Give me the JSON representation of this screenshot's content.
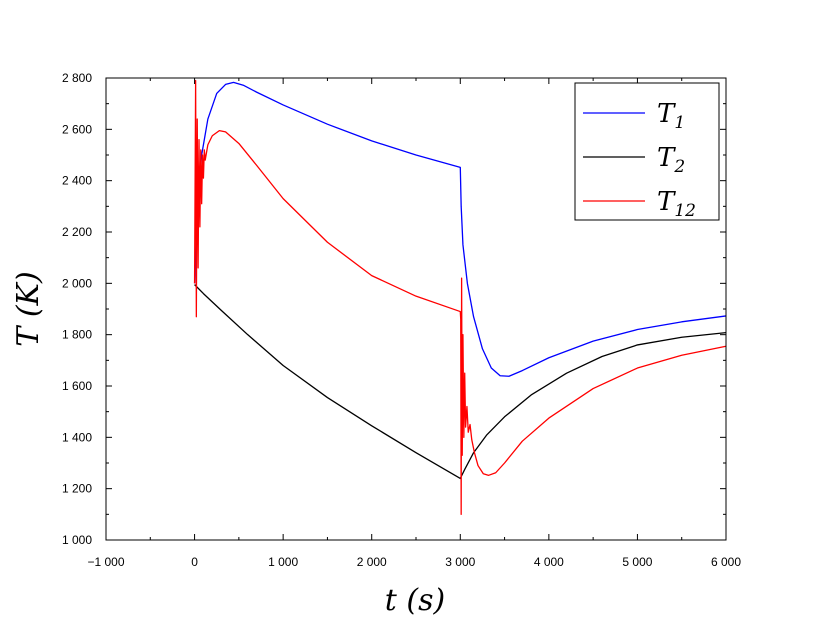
{
  "chart_data": {
    "type": "line",
    "title": "",
    "xlabel": {
      "var": "t",
      "unit": "s"
    },
    "ylabel": {
      "var": "T",
      "unit": "K"
    },
    "xlim": [
      -1000,
      6000
    ],
    "ylim": [
      1000,
      2800
    ],
    "xticks": [
      -1000,
      0,
      1000,
      2000,
      3000,
      4000,
      5000,
      6000
    ],
    "xtick_labels": [
      "−1 000",
      "0",
      "1 000",
      "2 000",
      "3 000",
      "4 000",
      "5 000",
      "6 000"
    ],
    "yticks": [
      1000,
      1200,
      1400,
      1600,
      1800,
      2000,
      2200,
      2400,
      2600,
      2800
    ],
    "ytick_labels": [
      "1 000",
      "1 200",
      "1 400",
      "1 600",
      "1 800",
      "2 000",
      "2 200",
      "2 400",
      "2 600",
      "2 800"
    ],
    "grid": false,
    "legend_position": "top-right",
    "series": [
      {
        "name": "T1",
        "label_main": "T",
        "label_sub": "1",
        "color": "#0000ff",
        "points": [
          [
            0,
            2000
          ],
          [
            30,
            2300
          ],
          [
            80,
            2500
          ],
          [
            150,
            2640
          ],
          [
            250,
            2740
          ],
          [
            350,
            2775
          ],
          [
            440,
            2783
          ],
          [
            550,
            2772
          ],
          [
            700,
            2745
          ],
          [
            1000,
            2695
          ],
          [
            1500,
            2620
          ],
          [
            2000,
            2555
          ],
          [
            2500,
            2500
          ],
          [
            3000,
            2452
          ],
          [
            3010,
            2300
          ],
          [
            3030,
            2150
          ],
          [
            3080,
            2000
          ],
          [
            3150,
            1870
          ],
          [
            3250,
            1745
          ],
          [
            3350,
            1670
          ],
          [
            3450,
            1640
          ],
          [
            3550,
            1638
          ],
          [
            3700,
            1660
          ],
          [
            4000,
            1710
          ],
          [
            4500,
            1775
          ],
          [
            5000,
            1820
          ],
          [
            5500,
            1850
          ],
          [
            6000,
            1873
          ]
        ]
      },
      {
        "name": "T2",
        "label_main": "T",
        "label_sub": "2",
        "color": "#000000",
        "points": [
          [
            0,
            1995
          ],
          [
            100,
            1960
          ],
          [
            300,
            1895
          ],
          [
            600,
            1800
          ],
          [
            1000,
            1680
          ],
          [
            1500,
            1555
          ],
          [
            2000,
            1445
          ],
          [
            2500,
            1340
          ],
          [
            3000,
            1240
          ],
          [
            3050,
            1275
          ],
          [
            3150,
            1340
          ],
          [
            3300,
            1410
          ],
          [
            3500,
            1480
          ],
          [
            3800,
            1565
          ],
          [
            4200,
            1650
          ],
          [
            4600,
            1715
          ],
          [
            5000,
            1760
          ],
          [
            5500,
            1790
          ],
          [
            6000,
            1808
          ]
        ]
      },
      {
        "name": "T12",
        "label_main": "T",
        "label_sub": "12",
        "color": "#ff0000",
        "points": [
          [
            0,
            2000
          ],
          [
            12,
            2790
          ],
          [
            20,
            1870
          ],
          [
            30,
            2640
          ],
          [
            40,
            2060
          ],
          [
            50,
            2560
          ],
          [
            60,
            2220
          ],
          [
            70,
            2520
          ],
          [
            80,
            2310
          ],
          [
            90,
            2500
          ],
          [
            100,
            2410
          ],
          [
            110,
            2520
          ],
          [
            120,
            2480
          ],
          [
            150,
            2540
          ],
          [
            200,
            2575
          ],
          [
            280,
            2595
          ],
          [
            350,
            2590
          ],
          [
            500,
            2545
          ],
          [
            700,
            2460
          ],
          [
            1000,
            2330
          ],
          [
            1500,
            2160
          ],
          [
            2000,
            2030
          ],
          [
            2500,
            1950
          ],
          [
            3000,
            1890
          ],
          [
            3005,
            1860
          ],
          [
            3010,
            1100
          ],
          [
            3015,
            2020
          ],
          [
            3022,
            1330
          ],
          [
            3030,
            1800
          ],
          [
            3040,
            1400
          ],
          [
            3050,
            1650
          ],
          [
            3060,
            1440
          ],
          [
            3075,
            1520
          ],
          [
            3090,
            1420
          ],
          [
            3110,
            1450
          ],
          [
            3130,
            1390
          ],
          [
            3160,
            1340
          ],
          [
            3200,
            1290
          ],
          [
            3260,
            1258
          ],
          [
            3320,
            1252
          ],
          [
            3400,
            1262
          ],
          [
            3500,
            1300
          ],
          [
            3700,
            1385
          ],
          [
            4000,
            1475
          ],
          [
            4500,
            1590
          ],
          [
            5000,
            1670
          ],
          [
            5500,
            1720
          ],
          [
            6000,
            1755
          ]
        ]
      }
    ]
  }
}
